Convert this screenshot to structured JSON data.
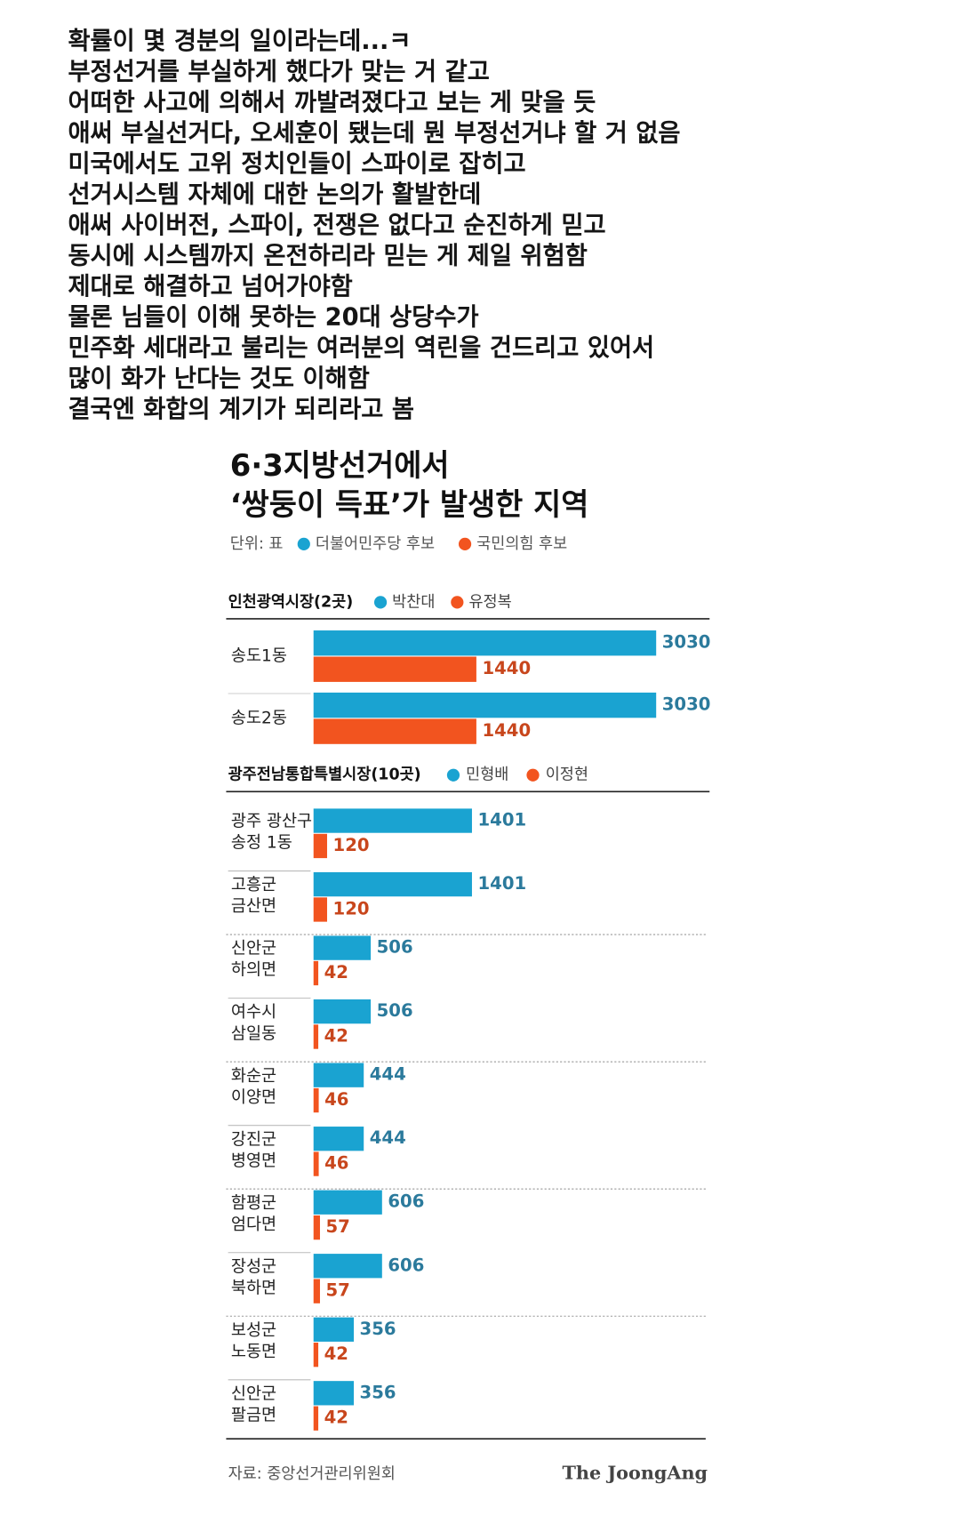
{
  "post": {
    "lines": [
      "확률이 몇 경분의 일이라는데...ㅋ",
      "부정선거를 부실하게 했다가 맞는 거 같고",
      "어떠한 사고에 의해서 까발려졌다고 보는 게 맞을 듯",
      "애써 부실선거다, 오세훈이 됐는데 뭔 부정선거냐 할 거 없음",
      "미국에서도 고위 정치인들이 스파이로 잡히고",
      "선거시스템 자체에 대한 논의가 활발한데",
      "애써 사이버전, 스파이, 전쟁은 없다고 순진하게 믿고",
      "동시에 시스템까지 온전하리라 믿는 게 제일 위험함",
      "제대로 해결하고 넘어가야함",
      "물론 님들이 이해 못하는 20대 상당수가",
      "민주화 세대라고 불리는 여러분의 역린을 건드리고 있어서",
      "많이 화가 난다는 것도 이해함",
      "결국엔 화합의 계기가 되리라고 봄"
    ]
  },
  "infographic": {
    "title": [
      "6·3지방선거에서",
      "‘쌍둥이 득표’가 발생한 지역"
    ],
    "unit": "단위: 표",
    "legend": [
      {
        "name": "더불어민주당 후보",
        "color": "#1aa3d1"
      },
      {
        "name": "국민의힘 후보",
        "color": "#f2541f"
      }
    ],
    "source": "자료: 중앙선거관리위원회",
    "brand": "The JoongAng"
  },
  "chart_data": [
    {
      "type": "bar",
      "orientation": "horizontal",
      "title": "인천광역시장(2곳)",
      "categories": [
        [
          "송도1동"
        ],
        [
          "송도2동"
        ]
      ],
      "series": [
        {
          "name": "박찬대",
          "color": "#1aa3d1",
          "values": [
            3030,
            3030
          ]
        },
        {
          "name": "유정복",
          "color": "#f2541f",
          "values": [
            1440,
            1440
          ]
        }
      ]
    },
    {
      "type": "bar",
      "orientation": "horizontal",
      "title": "광주전남통합특별시장(10곳)",
      "categories": [
        [
          "광주 광산구",
          "송정 1동"
        ],
        [
          "고흥군",
          "금산면"
        ],
        [
          "신안군",
          "하의면"
        ],
        [
          "여수시",
          "삼일동"
        ],
        [
          "화순군",
          "이양면"
        ],
        [
          "강진군",
          "병영면"
        ],
        [
          "함평군",
          "엄다면"
        ],
        [
          "장성군",
          "북하면"
        ],
        [
          "보성군",
          "노동면"
        ],
        [
          "신안군",
          "팔금면"
        ]
      ],
      "series": [
        {
          "name": "민형배",
          "color": "#1aa3d1",
          "values": [
            1401,
            1401,
            506,
            506,
            444,
            444,
            606,
            606,
            356,
            356
          ]
        },
        {
          "name": "이정현",
          "color": "#f2541f",
          "values": [
            120,
            120,
            42,
            42,
            46,
            46,
            57,
            57,
            42,
            42
          ]
        }
      ]
    }
  ]
}
